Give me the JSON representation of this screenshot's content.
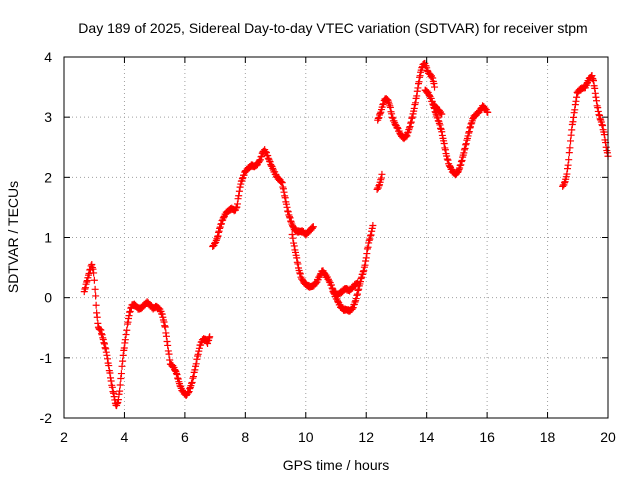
{
  "chart_data": {
    "type": "scatter",
    "title": "Day 189 of 2025, Sidereal Day-to-day VTEC variation (SDTVAR) for receiver stpm",
    "xlabel": "GPS time / hours",
    "ylabel": "SDTVAR / TECUs",
    "xlim": [
      2,
      20
    ],
    "ylim": [
      -2,
      4
    ],
    "xticks": [
      2,
      4,
      6,
      8,
      10,
      12,
      14,
      16,
      18,
      20
    ],
    "yticks": [
      -2,
      -1,
      0,
      1,
      2,
      3,
      4
    ],
    "xtick_labels": [
      "2",
      "4",
      "6",
      "8",
      "10",
      "12",
      "14",
      "16",
      "18",
      "20"
    ],
    "ytick_labels": [
      "-2",
      "-1",
      "0",
      "1",
      "2",
      "3",
      "4"
    ],
    "grid": true,
    "marker": "+",
    "color": "#ff0000",
    "series": [
      {
        "segments": [
          [
            [
              2.67,
              0.1
            ],
            [
              2.75,
              0.25
            ],
            [
              2.85,
              0.45
            ],
            [
              2.92,
              0.55
            ],
            [
              2.98,
              0.42
            ],
            [
              3.03,
              0.15
            ],
            [
              3.08,
              -0.25
            ],
            [
              3.14,
              -0.5
            ],
            [
              3.22,
              -0.55
            ],
            [
              3.3,
              -0.7
            ],
            [
              3.4,
              -0.9
            ],
            [
              3.5,
              -1.2
            ],
            [
              3.58,
              -1.45
            ],
            [
              3.66,
              -1.65
            ],
            [
              3.72,
              -1.8
            ],
            [
              3.78,
              -1.75
            ],
            [
              3.84,
              -1.55
            ],
            [
              3.9,
              -1.25
            ],
            [
              3.96,
              -0.95
            ],
            [
              4.03,
              -0.7
            ],
            [
              4.1,
              -0.45
            ],
            [
              4.17,
              -0.25
            ],
            [
              4.25,
              -0.12
            ],
            [
              4.35,
              -0.12
            ],
            [
              4.45,
              -0.18
            ],
            [
              4.55,
              -0.18
            ],
            [
              4.65,
              -0.12
            ],
            [
              4.75,
              -0.08
            ],
            [
              4.85,
              -0.12
            ],
            [
              4.95,
              -0.18
            ],
            [
              5.05,
              -0.15
            ],
            [
              5.15,
              -0.18
            ],
            [
              5.25,
              -0.28
            ],
            [
              5.35,
              -0.5
            ],
            [
              5.43,
              -0.8
            ],
            [
              5.52,
              -1.1
            ],
            [
              5.62,
              -1.15
            ],
            [
              5.72,
              -1.25
            ],
            [
              5.8,
              -1.4
            ],
            [
              5.88,
              -1.52
            ],
            [
              5.96,
              -1.58
            ],
            [
              6.05,
              -1.62
            ],
            [
              6.14,
              -1.55
            ],
            [
              6.24,
              -1.4
            ],
            [
              6.33,
              -1.2
            ],
            [
              6.42,
              -0.98
            ],
            [
              6.5,
              -0.8
            ],
            [
              6.58,
              -0.7
            ],
            [
              6.66,
              -0.68
            ],
            [
              6.75,
              -0.75
            ],
            [
              6.82,
              -0.65
            ]
          ],
          [
            [
              6.92,
              0.85
            ],
            [
              7.0,
              0.9
            ],
            [
              7.08,
              1.0
            ],
            [
              7.15,
              1.15
            ],
            [
              7.25,
              1.3
            ],
            [
              7.35,
              1.4
            ],
            [
              7.45,
              1.45
            ],
            [
              7.55,
              1.48
            ],
            [
              7.65,
              1.45
            ],
            [
              7.72,
              1.5
            ],
            [
              7.78,
              1.7
            ],
            [
              7.85,
              1.9
            ],
            [
              7.92,
              2.0
            ],
            [
              8.0,
              2.1
            ],
            [
              8.1,
              2.15
            ],
            [
              8.2,
              2.2
            ],
            [
              8.3,
              2.18
            ],
            [
              8.4,
              2.22
            ],
            [
              8.5,
              2.3
            ],
            [
              8.58,
              2.42
            ],
            [
              8.64,
              2.45
            ],
            [
              8.7,
              2.4
            ],
            [
              8.78,
              2.3
            ],
            [
              8.86,
              2.2
            ],
            [
              8.95,
              2.1
            ],
            [
              9.05,
              2.0
            ],
            [
              9.15,
              1.95
            ],
            [
              9.22,
              1.9
            ],
            [
              9.28,
              1.75
            ],
            [
              9.34,
              1.6
            ],
            [
              9.4,
              1.45
            ],
            [
              9.46,
              1.35
            ],
            [
              9.52,
              1.25
            ],
            [
              9.6,
              1.15
            ],
            [
              9.7,
              1.1
            ],
            [
              9.8,
              1.1
            ],
            [
              9.9,
              1.1
            ],
            [
              10.0,
              1.05
            ],
            [
              10.1,
              1.1
            ],
            [
              10.2,
              1.15
            ],
            [
              10.25,
              1.18
            ]
          ],
          [
            [
              9.55,
              1.05
            ],
            [
              9.62,
              0.85
            ],
            [
              9.7,
              0.65
            ],
            [
              9.78,
              0.45
            ],
            [
              9.86,
              0.32
            ],
            [
              9.95,
              0.25
            ],
            [
              10.05,
              0.2
            ],
            [
              10.15,
              0.18
            ],
            [
              10.25,
              0.2
            ],
            [
              10.35,
              0.25
            ],
            [
              10.45,
              0.35
            ],
            [
              10.55,
              0.45
            ],
            [
              10.65,
              0.38
            ],
            [
              10.75,
              0.3
            ],
            [
              10.85,
              0.2
            ],
            [
              10.95,
              0.05
            ],
            [
              11.05,
              -0.05
            ],
            [
              11.15,
              -0.15
            ],
            [
              11.25,
              -0.2
            ],
            [
              11.35,
              -0.2
            ],
            [
              11.45,
              -0.22
            ],
            [
              11.55,
              -0.18
            ],
            [
              11.65,
              -0.05
            ],
            [
              11.75,
              0.15
            ],
            [
              11.85,
              0.35
            ],
            [
              11.92,
              0.45
            ],
            [
              11.98,
              0.6
            ],
            [
              12.04,
              0.8
            ],
            [
              12.1,
              0.95
            ],
            [
              12.16,
              1.05
            ],
            [
              12.22,
              1.2
            ]
          ],
          [
            [
              10.9,
              0.1
            ],
            [
              11.05,
              0.05
            ],
            [
              11.2,
              0.1
            ],
            [
              11.3,
              0.15
            ],
            [
              11.45,
              0.12
            ],
            [
              11.6,
              0.2
            ],
            [
              11.72,
              0.25
            ]
          ],
          [
            [
              12.36,
              1.8
            ],
            [
              12.42,
              1.85
            ],
            [
              12.48,
              1.95
            ],
            [
              12.52,
              2.05
            ]
          ],
          [
            [
              12.38,
              2.95
            ],
            [
              12.46,
              3.05
            ],
            [
              12.55,
              3.2
            ],
            [
              12.62,
              3.3
            ],
            [
              12.7,
              3.3
            ],
            [
              12.78,
              3.2
            ],
            [
              12.86,
              3.0
            ],
            [
              12.94,
              2.9
            ],
            [
              13.05,
              2.8
            ],
            [
              13.15,
              2.7
            ],
            [
              13.25,
              2.65
            ],
            [
              13.35,
              2.7
            ],
            [
              13.45,
              2.85
            ],
            [
              13.55,
              3.05
            ],
            [
              13.65,
              3.3
            ],
            [
              13.73,
              3.55
            ],
            [
              13.8,
              3.75
            ],
            [
              13.86,
              3.85
            ],
            [
              13.92,
              3.9
            ],
            [
              13.98,
              3.85
            ],
            [
              14.04,
              3.75
            ],
            [
              14.12,
              3.7
            ],
            [
              14.2,
              3.65
            ],
            [
              14.26,
              3.5
            ]
          ],
          [
            [
              13.95,
              3.45
            ],
            [
              14.05,
              3.4
            ],
            [
              14.15,
              3.3
            ],
            [
              14.22,
              3.2
            ],
            [
              14.28,
              3.1
            ],
            [
              14.35,
              3.0
            ],
            [
              14.42,
              2.9
            ],
            [
              14.5,
              2.75
            ],
            [
              14.58,
              2.55
            ],
            [
              14.66,
              2.35
            ],
            [
              14.75,
              2.2
            ],
            [
              14.85,
              2.1
            ],
            [
              14.95,
              2.05
            ],
            [
              15.05,
              2.1
            ],
            [
              15.15,
              2.25
            ],
            [
              15.25,
              2.45
            ],
            [
              15.35,
              2.65
            ],
            [
              15.45,
              2.85
            ],
            [
              15.55,
              3.0
            ],
            [
              15.65,
              3.05
            ],
            [
              15.75,
              3.1
            ],
            [
              15.85,
              3.18
            ],
            [
              15.93,
              3.15
            ],
            [
              16.02,
              3.08
            ]
          ],
          [
            [
              14.25,
              3.2
            ],
            [
              14.33,
              3.15
            ],
            [
              14.42,
              3.1
            ],
            [
              14.5,
              3.05
            ]
          ],
          [
            [
              18.5,
              1.85
            ],
            [
              18.56,
              1.9
            ],
            [
              18.62,
              2.0
            ],
            [
              18.68,
              2.2
            ],
            [
              18.74,
              2.5
            ],
            [
              18.8,
              2.8
            ],
            [
              18.86,
              3.0
            ],
            [
              18.92,
              3.2
            ],
            [
              18.98,
              3.4
            ],
            [
              19.05,
              3.45
            ],
            [
              19.15,
              3.48
            ],
            [
              19.25,
              3.5
            ],
            [
              19.32,
              3.58
            ],
            [
              19.4,
              3.65
            ],
            [
              19.47,
              3.68
            ],
            [
              19.52,
              3.6
            ],
            [
              19.58,
              3.4
            ],
            [
              19.64,
              3.2
            ],
            [
              19.7,
              3.05
            ],
            [
              19.76,
              2.95
            ],
            [
              19.82,
              2.85
            ],
            [
              19.88,
              2.7
            ],
            [
              19.94,
              2.5
            ],
            [
              20.0,
              2.35
            ]
          ]
        ]
      }
    ]
  }
}
